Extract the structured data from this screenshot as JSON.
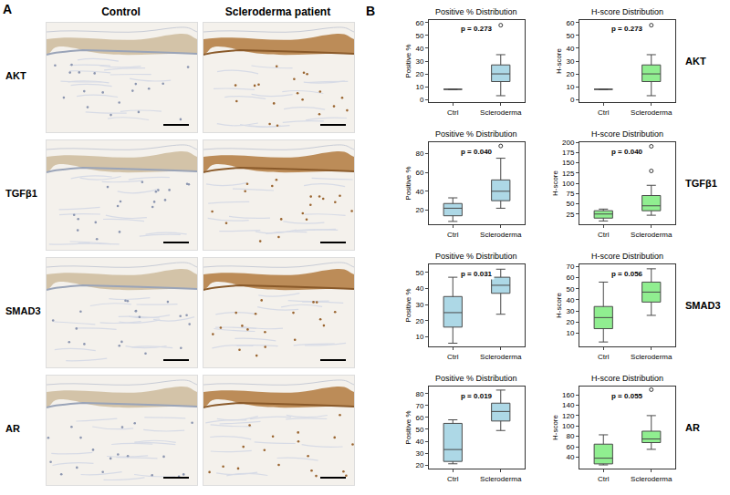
{
  "figure": {
    "panel_A": {
      "letter": "A",
      "columns": [
        "Control",
        "Scleroderma patient"
      ],
      "rows": [
        "AKT",
        "TGFβ1",
        "SMAD3",
        "AR"
      ]
    },
    "panel_B": {
      "letter": "B",
      "rows": [
        "AKT",
        "TGFβ1",
        "SMAD3",
        "AR"
      ]
    }
  },
  "chart_data": [
    {
      "type": "box",
      "title": "Positive % Distribution",
      "y_label": "Positive %",
      "categories": [
        "Ctrl",
        "Scleroderma"
      ],
      "color": "#add8e6",
      "grid": false,
      "ylim": [
        -2,
        62
      ],
      "yticks": [
        0,
        10,
        20,
        30,
        40,
        50,
        60
      ],
      "annotation": "p = 0.273",
      "boxes": [
        {
          "q1": 8,
          "median": 8,
          "q3": 8,
          "lowerfence": 8,
          "upperfence": 8,
          "outliers": []
        },
        {
          "q1": 14,
          "median": 20,
          "q3": 27,
          "lowerfence": 3,
          "upperfence": 35,
          "outliers": [
            58
          ]
        }
      ]
    },
    {
      "type": "box",
      "title": "H-score Distribution",
      "y_label": "H-score",
      "categories": [
        "Ctrl",
        "Scleroderma"
      ],
      "color": "#90ee90",
      "grid": false,
      "ylim": [
        -2,
        62
      ],
      "yticks": [
        0,
        10,
        20,
        30,
        40,
        50,
        60
      ],
      "annotation": "p = 0.273",
      "boxes": [
        {
          "q1": 8,
          "median": 8,
          "q3": 8,
          "lowerfence": 8,
          "upperfence": 8,
          "outliers": []
        },
        {
          "q1": 14,
          "median": 20,
          "q3": 27,
          "lowerfence": 3,
          "upperfence": 35,
          "outliers": [
            58
          ]
        }
      ]
    },
    {
      "type": "box",
      "title": "Positive % Distribution",
      "y_label": "Positive %",
      "categories": [
        "Ctrl",
        "Scleroderma"
      ],
      "color": "#add8e6",
      "grid": false,
      "ylim": [
        5,
        92
      ],
      "yticks": [
        20,
        40,
        60,
        80
      ],
      "annotation": "p = 0.040",
      "boxes": [
        {
          "q1": 14,
          "median": 22,
          "q3": 27,
          "lowerfence": 8,
          "upperfence": 33,
          "outliers": []
        },
        {
          "q1": 30,
          "median": 40,
          "q3": 52,
          "lowerfence": 22,
          "upperfence": 75,
          "outliers": [
            88
          ]
        }
      ]
    },
    {
      "type": "box",
      "title": "H-score Distribution",
      "y_label": "H-score",
      "categories": [
        "Ctrl",
        "Scleroderma"
      ],
      "color": "#90ee90",
      "grid": false,
      "ylim": [
        0,
        200
      ],
      "yticks": [
        25,
        50,
        75,
        100,
        125,
        150,
        175,
        200
      ],
      "annotation": "p = 0.040",
      "boxes": [
        {
          "q1": 15,
          "median": 25,
          "q3": 33,
          "lowerfence": 8,
          "upperfence": 37,
          "outliers": []
        },
        {
          "q1": 33,
          "median": 45,
          "q3": 70,
          "lowerfence": 22,
          "upperfence": 95,
          "outliers": [
            130,
            190
          ]
        }
      ]
    },
    {
      "type": "box",
      "title": "Positive % Distribution",
      "y_label": "Positive %",
      "categories": [
        "Ctrl",
        "Scleroderma"
      ],
      "color": "#add8e6",
      "grid": false,
      "ylim": [
        4,
        55
      ],
      "yticks": [
        10,
        20,
        30,
        40,
        50
      ],
      "annotation": "p = 0.031",
      "boxes": [
        {
          "q1": 16,
          "median": 25,
          "q3": 35,
          "lowerfence": 6,
          "upperfence": 47,
          "outliers": []
        },
        {
          "q1": 37,
          "median": 42,
          "q3": 47,
          "lowerfence": 24,
          "upperfence": 52,
          "outliers": []
        }
      ]
    },
    {
      "type": "box",
      "title": "H-score Distribution",
      "y_label": "H-score",
      "categories": [
        "Ctrl",
        "Scleroderma"
      ],
      "color": "#90ee90",
      "grid": false,
      "ylim": [
        -2,
        72
      ],
      "yticks": [
        10,
        20,
        30,
        40,
        50,
        60,
        70
      ],
      "annotation": "p = 0.056",
      "boxes": [
        {
          "q1": 14,
          "median": 24,
          "q3": 34,
          "lowerfence": 2,
          "upperfence": 56,
          "outliers": []
        },
        {
          "q1": 38,
          "median": 47,
          "q3": 56,
          "lowerfence": 26,
          "upperfence": 68,
          "outliers": []
        }
      ]
    },
    {
      "type": "box",
      "title": "Positive % Distribution",
      "y_label": "Positive %",
      "categories": [
        "Ctrl",
        "Scleroderma"
      ],
      "color": "#add8e6",
      "grid": false,
      "ylim": [
        17,
        86
      ],
      "yticks": [
        20,
        30,
        40,
        50,
        60,
        70,
        80
      ],
      "annotation": "p = 0.019",
      "boxes": [
        {
          "q1": 23,
          "median": 33,
          "q3": 55,
          "lowerfence": 21,
          "upperfence": 58,
          "outliers": []
        },
        {
          "q1": 57,
          "median": 65,
          "q3": 72,
          "lowerfence": 49,
          "upperfence": 83,
          "outliers": []
        }
      ]
    },
    {
      "type": "box",
      "title": "H-score Distribution",
      "y_label": "H-score",
      "categories": [
        "Ctrl",
        "Scleroderma"
      ],
      "color": "#90ee90",
      "grid": false,
      "ylim": [
        18,
        176
      ],
      "yticks": [
        40,
        60,
        80,
        100,
        120,
        140,
        160
      ],
      "annotation": "p = 0.055",
      "boxes": [
        {
          "q1": 27,
          "median": 38,
          "q3": 65,
          "lowerfence": 25,
          "upperfence": 83,
          "outliers": []
        },
        {
          "q1": 68,
          "median": 75,
          "q3": 90,
          "lowerfence": 55,
          "upperfence": 120,
          "outliers": [
            170
          ]
        }
      ]
    }
  ]
}
